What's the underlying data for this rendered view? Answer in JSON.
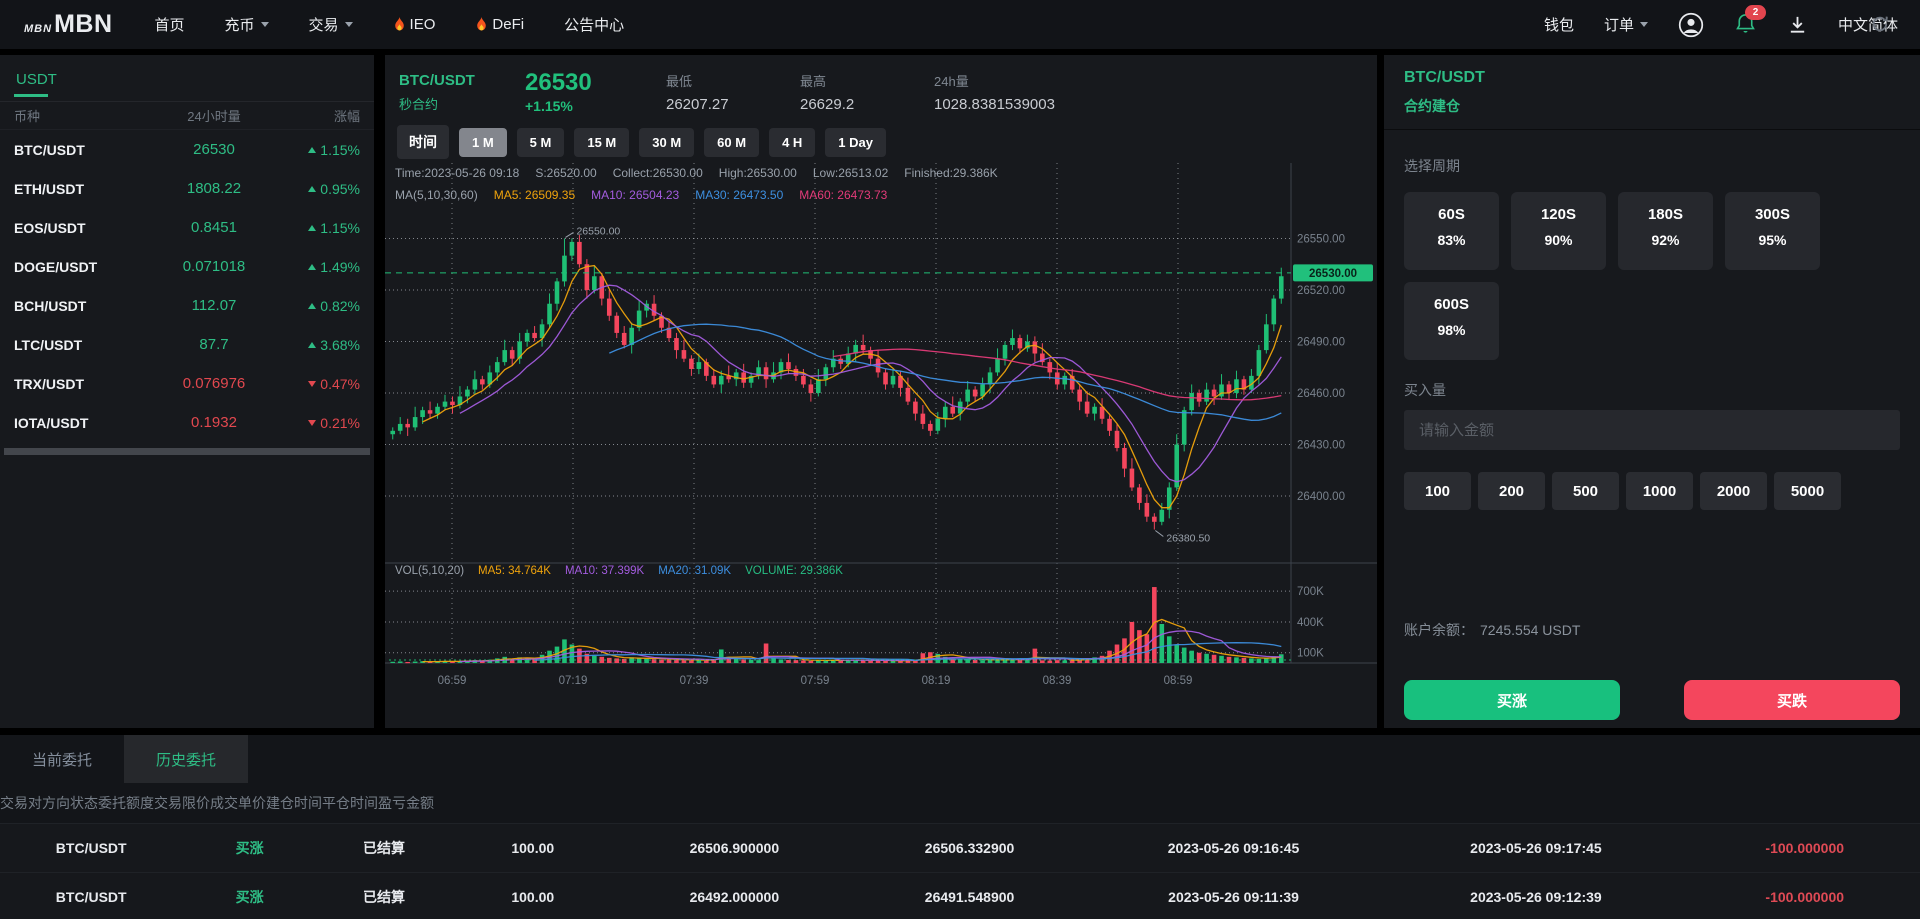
{
  "nav": {
    "logo_prefix": "MBN",
    "logo_main": "MBN",
    "items": [
      {
        "label": "首页",
        "caret": false,
        "fire": false
      },
      {
        "label": "充币",
        "caret": true,
        "fire": false
      },
      {
        "label": "交易",
        "caret": true,
        "fire": false
      },
      {
        "label": "IEO",
        "caret": false,
        "fire": true
      },
      {
        "label": "DeFi",
        "caret": false,
        "fire": true
      },
      {
        "label": "公告中心",
        "caret": false,
        "fire": false
      }
    ],
    "wallet": "钱包",
    "orders": "订单",
    "notif_count": "2",
    "lang": "中文简体"
  },
  "sidebar": {
    "tab": "USDT",
    "col_coin": "币种",
    "col_vol": "24小时量",
    "col_chg": "涨幅",
    "pairs": [
      {
        "name": "BTC/USDT",
        "vol": "26530",
        "chg": "1.15%",
        "dir": "up"
      },
      {
        "name": "ETH/USDT",
        "vol": "1808.22",
        "chg": "0.95%",
        "dir": "up"
      },
      {
        "name": "EOS/USDT",
        "vol": "0.8451",
        "chg": "1.15%",
        "dir": "up"
      },
      {
        "name": "DOGE/USDT",
        "vol": "0.071018",
        "chg": "1.49%",
        "dir": "up"
      },
      {
        "name": "BCH/USDT",
        "vol": "112.07",
        "chg": "0.82%",
        "dir": "up"
      },
      {
        "name": "LTC/USDT",
        "vol": "87.7",
        "chg": "3.68%",
        "dir": "up"
      },
      {
        "name": "TRX/USDT",
        "vol": "0.076976",
        "chg": "0.47%",
        "dir": "down"
      },
      {
        "name": "IOTA/USDT",
        "vol": "0.1932",
        "chg": "0.21%",
        "dir": "down"
      }
    ]
  },
  "chart": {
    "pair": "BTC/USDT",
    "contract_label": "秒合约",
    "price": "26530",
    "change": "+1.15%",
    "stats": [
      {
        "label": "最低",
        "value": "26207.27"
      },
      {
        "label": "最高",
        "value": "26629.2"
      },
      {
        "label": "24h量",
        "value": "1028.8381539003"
      }
    ],
    "tf_label": "时间",
    "timeframes": [
      {
        "label": "1 M",
        "cls": "tf-active"
      },
      {
        "label": "5 M",
        "cls": "tf-normal"
      },
      {
        "label": "15 M",
        "cls": "tf-normal"
      },
      {
        "label": "30 M",
        "cls": "tf-normal"
      },
      {
        "label": "60 M",
        "cls": "tf-normal"
      },
      {
        "label": "4 H",
        "cls": "tf-normal"
      },
      {
        "label": "1 Day",
        "cls": "tf-normal"
      }
    ],
    "legend_info": [
      {
        "text": "Time:2023-05-26 09:18"
      },
      {
        "text": "S:26520.00"
      },
      {
        "text": "Collect:26530.00"
      },
      {
        "text": "High:26530.00"
      },
      {
        "text": "Low:26513.02"
      },
      {
        "text": "Finished:29.386K"
      }
    ],
    "legend_ma": [
      {
        "text": "MA(5,10,30,60)",
        "color": "#9aa2ac"
      },
      {
        "text": "MA5: 26509.35",
        "color": "#efa30c"
      },
      {
        "text": "MA10: 26504.23",
        "color": "#a35cdf"
      },
      {
        "text": "MA30: 26473.50",
        "color": "#3d8fe0"
      },
      {
        "text": "MA60: 26473.73",
        "color": "#e33b79"
      }
    ],
    "legend_vol": [
      {
        "text": "VOL(5,10,20)",
        "color": "#9aa2ac"
      },
      {
        "text": "MA5: 34.764K",
        "color": "#efa30c"
      },
      {
        "text": "MA10: 37.399K",
        "color": "#a35cdf"
      },
      {
        "text": "MA20: 31.09K",
        "color": "#3d8fe0"
      },
      {
        "text": "VOLUME: 29.386K",
        "color": "#27bd83"
      }
    ]
  },
  "chart_data": {
    "type": "candlestick",
    "title": "BTC/USDT 秒合约 1M",
    "ylim": [
      26368,
      26566
    ],
    "open0": 26436,
    "closes": [
      26438,
      26442,
      26440,
      26446,
      26450,
      26448,
      26452,
      26455,
      26453,
      26458,
      26462,
      26468,
      26465,
      26472,
      26478,
      26485,
      26480,
      26490,
      26495,
      26492,
      26500,
      26512,
      26525,
      26540,
      26548,
      26535,
      26520,
      26528,
      26515,
      26505,
      26495,
      26488,
      26498,
      26508,
      26512,
      26505,
      26498,
      26492,
      26485,
      26480,
      26474,
      26478,
      26470,
      26465,
      26470,
      26468,
      26472,
      26466,
      26470,
      26475,
      26468,
      26472,
      26478,
      26474,
      26470,
      26465,
      26460,
      26468,
      26475,
      26480,
      26477,
      26483,
      26488,
      26485,
      26480,
      26472,
      26465,
      26470,
      26463,
      26455,
      26448,
      26442,
      26438,
      26445,
      26452,
      26448,
      26455,
      26462,
      26458,
      26465,
      26472,
      26480,
      26488,
      26492,
      26486,
      26490,
      26483,
      26478,
      26472,
      26465,
      26470,
      26462,
      26455,
      26448,
      26452,
      26445,
      26438,
      26428,
      26416,
      26405,
      26396,
      26388,
      26385,
      26392,
      26405,
      26430,
      26450,
      26460,
      26455,
      26462,
      26458,
      26465,
      26460,
      26468,
      26462,
      26470,
      26485,
      26500,
      26515,
      26528
    ],
    "volumes_k": [
      12,
      15,
      10,
      14,
      18,
      12,
      16,
      20,
      14,
      18,
      22,
      28,
      24,
      32,
      45,
      60,
      40,
      55,
      48,
      38,
      80,
      120,
      160,
      230,
      180,
      140,
      90,
      70,
      60,
      50,
      45,
      40,
      55,
      48,
      42,
      38,
      35,
      35,
      30,
      28,
      25,
      30,
      28,
      28,
      132,
      60,
      40,
      35,
      30,
      28,
      190,
      45,
      35,
      30,
      28,
      25,
      22,
      25,
      28,
      30,
      26,
      28,
      32,
      28,
      25,
      22,
      20,
      24,
      21,
      26,
      30,
      95,
      105,
      88,
      60,
      45,
      40,
      35,
      30,
      28,
      30,
      28,
      35,
      40,
      32,
      30,
      140,
      26,
      24,
      28,
      26,
      30,
      35,
      45,
      55,
      70,
      120,
      180,
      240,
      400,
      320,
      280,
      740,
      380,
      260,
      180,
      150,
      120,
      100,
      90,
      80,
      70,
      60,
      55,
      50,
      45,
      40,
      50,
      65,
      85
    ],
    "vol_max_k": 760,
    "current_price": 26530,
    "current_price_label": "26530.00",
    "current_vol_k": 29.4,
    "y_ticks": [
      {
        "v": 26550,
        "label": "26550.00"
      },
      {
        "v": 26520,
        "label": "26520.00"
      },
      {
        "v": 26490,
        "label": "26490.00"
      },
      {
        "v": 26460,
        "label": "26460.00"
      },
      {
        "v": 26430,
        "label": "26430.00"
      },
      {
        "v": 26400,
        "label": "26400.00"
      }
    ],
    "vol_ticks": [
      {
        "v": 700,
        "label": "700K"
      },
      {
        "v": 400,
        "label": "400K"
      },
      {
        "v": 100,
        "label": "100K"
      }
    ],
    "time_labels": [
      "06:59",
      "07:19",
      "07:39",
      "07:59",
      "08:19",
      "08:39",
      "08:59"
    ],
    "markers": {
      "high": {
        "index": 23,
        "value": 26550,
        "label": "26550.00"
      },
      "low": {
        "index": 102,
        "value": 26380.5,
        "label": "26380.50"
      }
    },
    "price_ma_periods": [
      5,
      10,
      30,
      60
    ],
    "vol_ma_periods": [
      5,
      10,
      20
    ],
    "colors": {
      "up": "#1fbf75",
      "down": "#f4465d",
      "ma1": "#efa30c",
      "ma2": "#a35cdf",
      "ma3": "#3d8fe0",
      "ma4": "#e33b79",
      "grid": "#cdd2d9",
      "axis": "#3c434c",
      "price_line": "#1fbf75",
      "tick_text": "#79828d",
      "badge_text": "#09241a"
    }
  },
  "panel": {
    "pair": "BTC/USDT",
    "title": "合约建仓",
    "period_label": "选择周期",
    "periods": [
      {
        "sec": "60S",
        "pct": "83%"
      },
      {
        "sec": "120S",
        "pct": "90%"
      },
      {
        "sec": "180S",
        "pct": "92%"
      },
      {
        "sec": "300S",
        "pct": "95%"
      },
      {
        "sec": "600S",
        "pct": "98%"
      }
    ],
    "amount_label": "买入量",
    "input_placeholder": "请输入金额",
    "amounts": [
      "100",
      "200",
      "500",
      "1000",
      "2000",
      "5000"
    ],
    "balance_label": "账户余额：",
    "balance_value": "7245.554 USDT",
    "buy_up": "买涨",
    "buy_down": "买跌"
  },
  "orders": {
    "tabs": [
      {
        "label": "当前委托",
        "cls": "tab-normal"
      },
      {
        "label": "历史委托",
        "cls": "tab-active"
      }
    ],
    "headers": [
      "交易对",
      "方向",
      "状态",
      "委托额度",
      "交易限价",
      "成交单价",
      "建仓时间",
      "平仓时间",
      "盈亏金额"
    ],
    "rows": [
      {
        "cells": [
          "BTC/USDT",
          "买涨",
          "已结算",
          "100.00",
          "26506.900000",
          "26506.332900",
          "2023-05-26 09:16:45",
          "2023-05-26 09:17:45",
          "-100.000000"
        ]
      },
      {
        "cells": [
          "BTC/USDT",
          "买涨",
          "已结算",
          "100.00",
          "26492.000000",
          "26491.548900",
          "2023-05-26 09:11:39",
          "2023-05-26 09:12:39",
          "-100.000000"
        ]
      }
    ]
  }
}
